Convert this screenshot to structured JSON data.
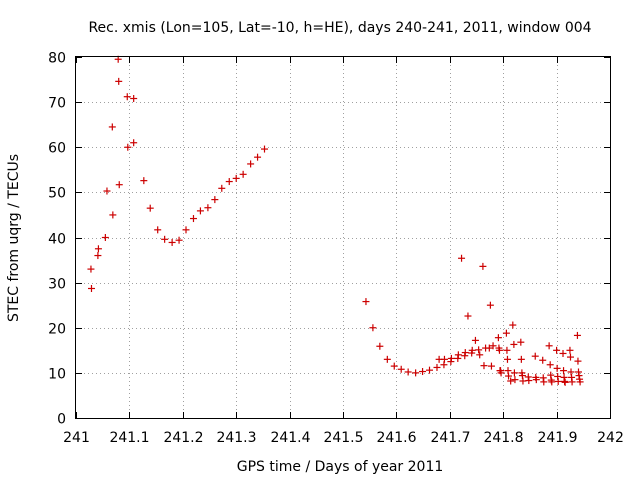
{
  "chart_data": {
    "type": "scatter",
    "title": "Rec. xmis (Lon=105, Lat=-10, h=HE), days 240-241, 2011, window 004",
    "xlabel": "GPS time / Days of year 2011",
    "ylabel": "STEC from uqrg / TECUs",
    "xlim": [
      241,
      242
    ],
    "ylim": [
      0,
      80
    ],
    "x_ticks": [
      241,
      241.1,
      241.2,
      241.3,
      241.4,
      241.5,
      241.6,
      241.7,
      241.8,
      241.9,
      242
    ],
    "x_tick_labels": [
      "241",
      "241.1",
      "241.2",
      "241.3",
      "241.4",
      "241.5",
      "241.6",
      "241.7",
      "241.8",
      "241.9",
      "242"
    ],
    "y_ticks": [
      0,
      10,
      20,
      30,
      40,
      50,
      60,
      70,
      80
    ],
    "y_tick_labels": [
      "0",
      "10",
      "20",
      "30",
      "40",
      "50",
      "60",
      "70",
      "80"
    ],
    "grid": true,
    "legend": "none",
    "marker": "+",
    "series": [
      {
        "name": "STEC",
        "color": "#cc0000",
        "points": [
          [
            241.028,
            33
          ],
          [
            241.029,
            28.7
          ],
          [
            241.041,
            36
          ],
          [
            241.042,
            37.5
          ],
          [
            241.055,
            40
          ],
          [
            241.058,
            50.3
          ],
          [
            241.068,
            64.5
          ],
          [
            241.069,
            45
          ],
          [
            241.079,
            79.5
          ],
          [
            241.08,
            74.6
          ],
          [
            241.081,
            51.7
          ],
          [
            241.096,
            71.2
          ],
          [
            241.097,
            60
          ],
          [
            241.108,
            70.8
          ],
          [
            241.108,
            61
          ],
          [
            241.127,
            52.6
          ],
          [
            241.139,
            46.5
          ],
          [
            241.153,
            41.7
          ],
          [
            241.166,
            39.6
          ],
          [
            241.18,
            38.9
          ],
          [
            241.193,
            39.4
          ],
          [
            241.206,
            41.7
          ],
          [
            241.22,
            44.2
          ],
          [
            241.233,
            45.9
          ],
          [
            241.247,
            46.6
          ],
          [
            241.26,
            48.4
          ],
          [
            241.273,
            50.9
          ],
          [
            241.287,
            52.4
          ],
          [
            241.3,
            53.1
          ],
          [
            241.313,
            54
          ],
          [
            241.327,
            56.3
          ],
          [
            241.34,
            57.8
          ],
          [
            241.353,
            59.6
          ],
          [
            241.543,
            25.8
          ],
          [
            241.556,
            20
          ],
          [
            241.569,
            15.9
          ],
          [
            241.583,
            13
          ],
          [
            241.596,
            11.5
          ],
          [
            241.609,
            10.8
          ],
          [
            241.622,
            10.2
          ],
          [
            241.636,
            10
          ],
          [
            241.649,
            10.3
          ],
          [
            241.662,
            10.6
          ],
          [
            241.676,
            11.2
          ],
          [
            241.68,
            13
          ],
          [
            241.689,
            11.8
          ],
          [
            241.69,
            13
          ],
          [
            241.702,
            12.5
          ],
          [
            241.703,
            13.2
          ],
          [
            241.715,
            13.2
          ],
          [
            241.716,
            14
          ],
          [
            241.722,
            35.4
          ],
          [
            241.728,
            13.8
          ],
          [
            241.729,
            14.5
          ],
          [
            241.734,
            22.6
          ],
          [
            241.741,
            14.4
          ],
          [
            241.742,
            15
          ],
          [
            241.748,
            17.2
          ],
          [
            241.754,
            15.1
          ],
          [
            241.756,
            14
          ],
          [
            241.762,
            33.6
          ],
          [
            241.764,
            11.6
          ],
          [
            241.767,
            15.5
          ],
          [
            241.774,
            15.5
          ],
          [
            241.776,
            25
          ],
          [
            241.778,
            11.5
          ],
          [
            241.781,
            16
          ],
          [
            241.791,
            17.8
          ],
          [
            241.792,
            15.5
          ],
          [
            241.793,
            15
          ],
          [
            241.794,
            10.5
          ],
          [
            241.795,
            10.5
          ],
          [
            241.796,
            10
          ],
          [
            241.806,
            18.8
          ],
          [
            241.807,
            15
          ],
          [
            241.808,
            13
          ],
          [
            241.809,
            10.5
          ],
          [
            241.81,
            9.3
          ],
          [
            241.814,
            8.2
          ],
          [
            241.818,
            20.6
          ],
          [
            241.82,
            16.3
          ],
          [
            241.821,
            10
          ],
          [
            241.822,
            8.5
          ],
          [
            241.833,
            16.8
          ],
          [
            241.834,
            13
          ],
          [
            241.835,
            10
          ],
          [
            241.836,
            9.4
          ],
          [
            241.837,
            8.2
          ],
          [
            241.847,
            9.1
          ],
          [
            241.848,
            8.3
          ],
          [
            241.86,
            13.7
          ],
          [
            241.861,
            9
          ],
          [
            241.862,
            8.5
          ],
          [
            241.874,
            12.8
          ],
          [
            241.875,
            8.9
          ],
          [
            241.876,
            8
          ],
          [
            241.886,
            16
          ],
          [
            241.888,
            11.8
          ],
          [
            241.889,
            9.5
          ],
          [
            241.89,
            8.4
          ],
          [
            241.891,
            8
          ],
          [
            241.9,
            15
          ],
          [
            241.901,
            11
          ],
          [
            241.902,
            9.2
          ],
          [
            241.903,
            8.1
          ],
          [
            241.912,
            14.3
          ],
          [
            241.913,
            10.5
          ],
          [
            241.914,
            9
          ],
          [
            241.915,
            8.1
          ],
          [
            241.916,
            7.9
          ],
          [
            241.925,
            15
          ],
          [
            241.926,
            13.5
          ],
          [
            241.927,
            10.2
          ],
          [
            241.928,
            9
          ],
          [
            241.929,
            8
          ],
          [
            241.939,
            18.3
          ],
          [
            241.94,
            12.6
          ],
          [
            241.941,
            10.2
          ],
          [
            241.942,
            9.4
          ],
          [
            241.943,
            8.6
          ],
          [
            241.944,
            8
          ]
        ]
      }
    ]
  }
}
